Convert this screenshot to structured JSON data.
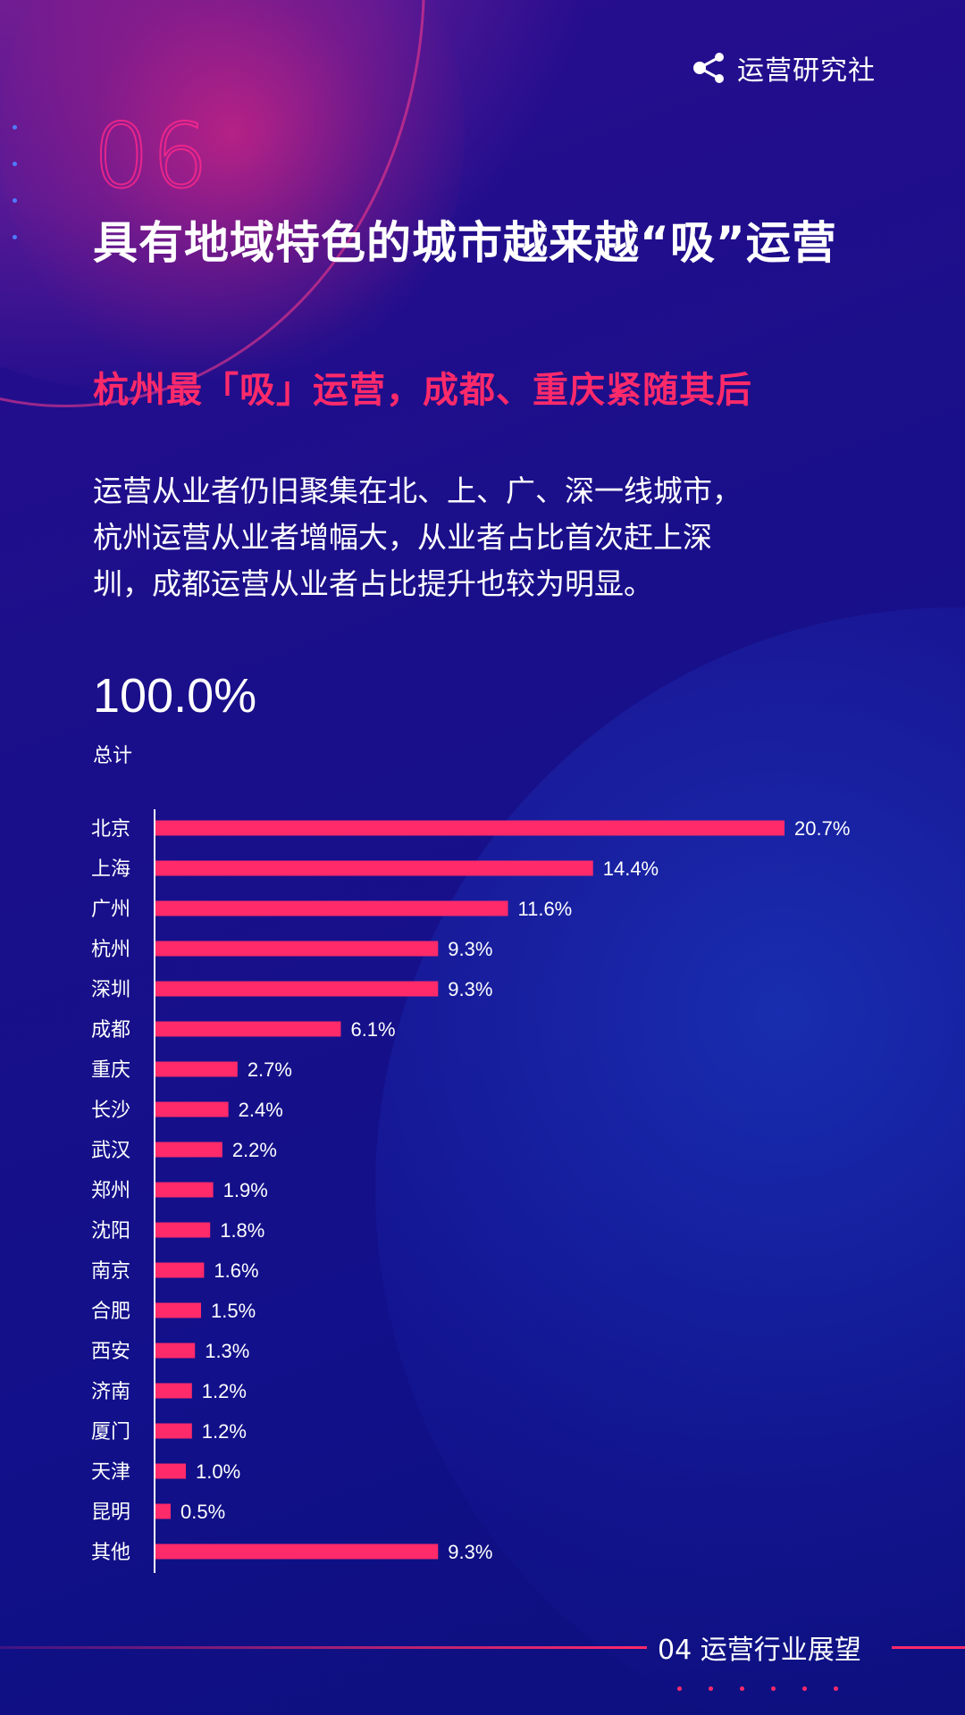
{
  "brand": {
    "logo_text": "运营研究社"
  },
  "header": {
    "section_number": "06",
    "title": "具有地域特色的城市越来越“吸”运营",
    "subtitle": "杭州最「吸」运营，成都、重庆紧随其后"
  },
  "body": {
    "lines": [
      "运营从业者仍旧聚集在北、上、广、深一线城市，",
      "杭州运营从业者增幅大，从业者占比首次赶上深",
      "圳，成都运营从业者占比提升也较为明显。"
    ]
  },
  "summary": {
    "total_value": "100.0%",
    "total_label": "总计"
  },
  "colors": {
    "bar": "#ff2a6a",
    "accent": "#ff2a6a",
    "background": "#1a0f86"
  },
  "chart_data": {
    "type": "bar",
    "orientation": "horizontal",
    "categories": [
      "北京",
      "上海",
      "广州",
      "杭州",
      "深圳",
      "成都",
      "重庆",
      "长沙",
      "武汉",
      "郑州",
      "沈阳",
      "南京",
      "合肥",
      "西安",
      "济南",
      "厦门",
      "天津",
      "昆明",
      "其他"
    ],
    "values": [
      20.7,
      14.4,
      11.6,
      9.3,
      9.3,
      6.1,
      2.7,
      2.4,
      2.2,
      1.9,
      1.8,
      1.6,
      1.5,
      1.3,
      1.2,
      1.2,
      1.0,
      0.5,
      9.3
    ],
    "value_labels": [
      "20.7%",
      "14.4%",
      "11.6%",
      "9.3%",
      "9.3%",
      "6.1%",
      "2.7%",
      "2.4%",
      "2.2%",
      "1.9%",
      "1.8%",
      "1.6%",
      "1.5%",
      "1.3%",
      "1.2%",
      "1.2%",
      "1.0%",
      "0.5%",
      "9.3%"
    ],
    "unit": "%",
    "xlim": [
      0,
      20.7
    ],
    "grid": false,
    "legend": "none"
  },
  "footer": {
    "label": "04 运营行业展望"
  }
}
